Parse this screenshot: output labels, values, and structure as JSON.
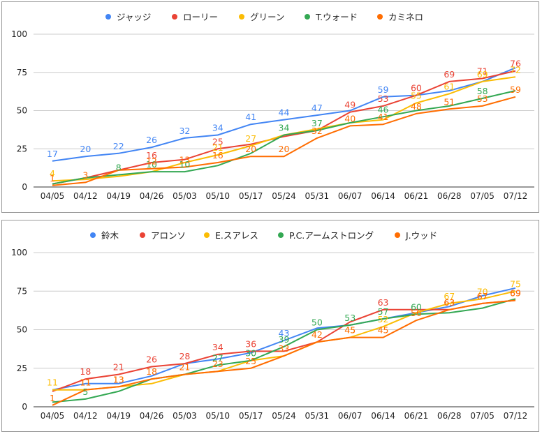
{
  "chart_data": [
    {
      "type": "line",
      "categories": [
        "04/05",
        "04/12",
        "04/19",
        "04/26",
        "05/03",
        "05/10",
        "05/17",
        "05/24",
        "05/31",
        "06/07",
        "06/14",
        "06/21",
        "06/28",
        "07/05",
        "07/12"
      ],
      "ylim": [
        0,
        100
      ],
      "yticks": [
        0,
        25,
        50,
        75,
        100
      ],
      "grid": true,
      "legend_position": "top",
      "series": [
        {
          "name": "ジャッジ",
          "color": "#4285f4",
          "values": [
            17,
            20,
            22,
            26,
            32,
            34,
            41,
            44,
            47,
            50,
            59,
            60,
            63,
            69,
            78
          ],
          "labels": [
            "17",
            "20",
            "22",
            "26",
            "32",
            "34",
            "41",
            "44",
            "47",
            "",
            "59",
            "",
            "",
            "",
            ""
          ]
        },
        {
          "name": "ローリー",
          "color": "#ea4335",
          "values": [
            2,
            6,
            11,
            16,
            18,
            25,
            28,
            33,
            37,
            49,
            53,
            60,
            69,
            71,
            76
          ],
          "labels": [
            "",
            "",
            "",
            "16",
            "",
            "25",
            "",
            "",
            "",
            "49",
            "53",
            "60",
            "69",
            "71",
            "76"
          ]
        },
        {
          "name": "グリーン",
          "color": "#fbbc04",
          "values": [
            4,
            5,
            7,
            10,
            16,
            21,
            27,
            34,
            38,
            42,
            44,
            55,
            61,
            69,
            72
          ],
          "labels": [
            "4",
            "",
            "",
            "",
            "",
            "21",
            "27",
            "",
            "",
            "",
            "",
            "55",
            "61",
            "69",
            "72"
          ]
        },
        {
          "name": "T.ウォード",
          "color": "#34a853",
          "values": [
            2,
            6,
            8,
            10,
            10,
            14,
            22,
            34,
            37,
            42,
            46,
            50,
            53,
            58,
            63
          ],
          "labels": [
            "",
            "",
            "8",
            "10",
            "10",
            "",
            "",
            "34",
            "37",
            "",
            "46",
            "",
            "",
            "58",
            ""
          ]
        },
        {
          "name": "カミネロ",
          "color": "#ff6d01",
          "values": [
            1,
            3,
            11,
            12,
            13,
            16,
            20,
            20,
            32,
            40,
            41,
            48,
            51,
            53,
            59
          ],
          "labels": [
            "1",
            "3",
            "",
            "12",
            "13",
            "16",
            "20",
            "20",
            "32",
            "40",
            "41",
            "48",
            "51",
            "53",
            "59"
          ]
        }
      ]
    },
    {
      "type": "line",
      "categories": [
        "04/05",
        "04/12",
        "04/19",
        "04/26",
        "05/03",
        "05/10",
        "05/17",
        "05/24",
        "05/31",
        "06/07",
        "06/14",
        "06/21",
        "06/28",
        "07/05",
        "07/12"
      ],
      "ylim": [
        0,
        100
      ],
      "yticks": [
        0,
        25,
        50,
        75,
        100
      ],
      "grid": true,
      "legend_position": "top",
      "series": [
        {
          "name": "鈴木",
          "color": "#4285f4",
          "values": [
            11,
            15,
            15,
            20,
            28,
            31,
            35,
            43,
            51,
            53,
            57,
            61,
            65,
            72,
            77
          ],
          "labels": [
            "",
            "",
            "",
            "",
            "",
            "",
            "",
            "43",
            "",
            "",
            "",
            "",
            "",
            "",
            ""
          ]
        },
        {
          "name": "アロンソ",
          "color": "#ea4335",
          "values": [
            10,
            18,
            21,
            26,
            28,
            34,
            36,
            36,
            42,
            55,
            63,
            63,
            63,
            67,
            69
          ],
          "labels": [
            "",
            "18",
            "21",
            "26",
            "28",
            "34",
            "36",
            "",
            "",
            "",
            "63",
            "",
            "63",
            "67",
            "69"
          ]
        },
        {
          "name": "E.スアレス",
          "color": "#fbbc04",
          "values": [
            11,
            11,
            13,
            15,
            21,
            23,
            30,
            33,
            42,
            45,
            52,
            61,
            67,
            70,
            75
          ],
          "labels": [
            "11",
            "11",
            "13",
            "",
            "",
            "",
            "",
            "",
            "",
            "45",
            "52",
            "",
            "67",
            "70",
            "75"
          ]
        },
        {
          "name": "P.C.アームストロング",
          "color": "#34a853",
          "values": [
            3,
            5,
            10,
            18,
            21,
            27,
            30,
            39,
            50,
            53,
            57,
            60,
            61,
            64,
            70
          ],
          "labels": [
            "",
            "5",
            "",
            "",
            "",
            "27",
            "30",
            "39",
            "50",
            "53",
            "57",
            "60",
            "",
            "",
            ""
          ]
        },
        {
          "name": "J.ウッド",
          "color": "#ff6d01",
          "values": [
            1,
            11,
            13,
            18,
            21,
            23,
            25,
            33,
            42,
            45,
            45,
            56,
            63,
            67,
            69
          ],
          "labels": [
            "1",
            "11",
            "13",
            "18",
            "21",
            "23",
            "25",
            "33",
            "42",
            "45",
            "45",
            "56",
            "63",
            "67",
            "69"
          ]
        }
      ]
    }
  ]
}
